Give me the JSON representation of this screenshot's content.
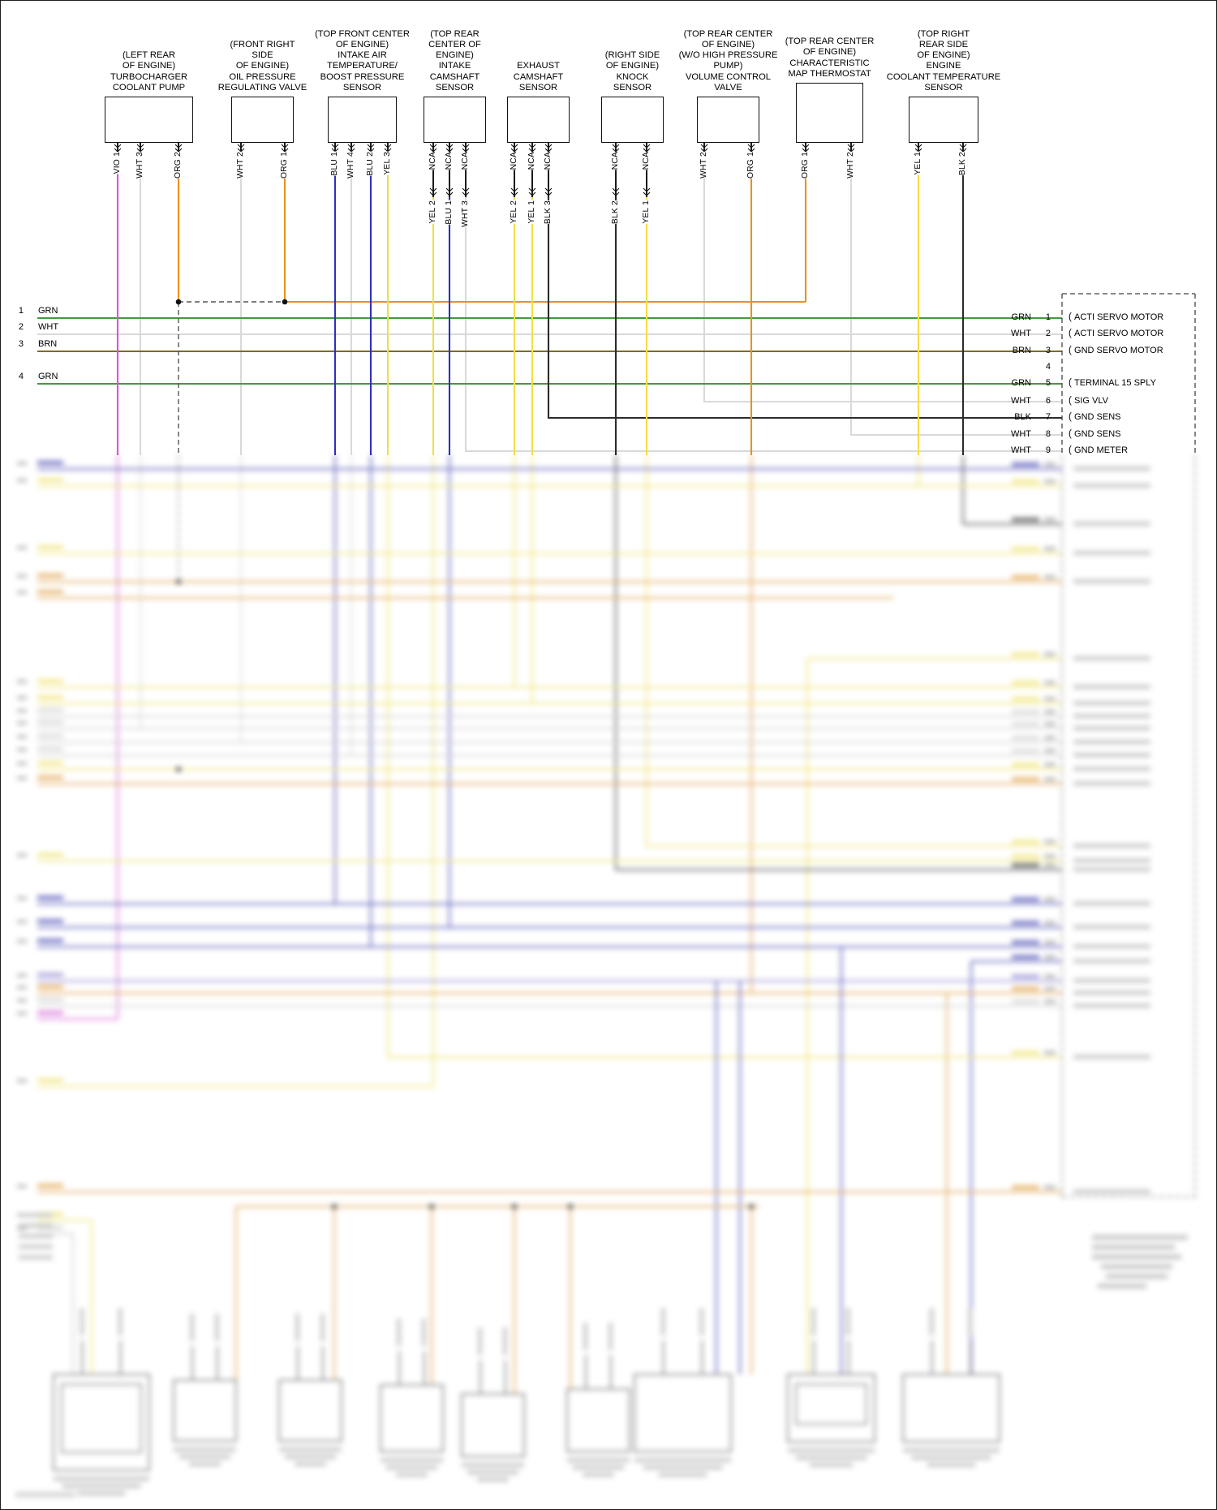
{
  "colors": {
    "GRN": "#3f9b3f",
    "WHT": "#d9d9d9",
    "BRN": "#7d6b21",
    "ORG": "#e8921e",
    "VIO": "#e14fe1",
    "BLU": "#2f2fbf",
    "YEL": "#f0df45",
    "BLK": "#2b2b2b",
    "GRY": "#c9c9c9",
    "PUR": "#8276d8",
    "DRK": "#555555"
  },
  "components": [
    {
      "label": "(LEFT REAR\nOF ENGINE)\nTURBOCHARGER\nCOOLANT PUMP",
      "pins": [
        "VIO 1",
        "WHT 3",
        "ORG 2"
      ],
      "nca": []
    },
    {
      "label": "(FRONT RIGHT\nSIDE\nOF ENGINE)\nOIL PRESSURE\nREGULATING VALVE",
      "pins": [
        "WHT 2",
        "ORG 1"
      ],
      "nca": []
    },
    {
      "label": "(TOP FRONT CENTER\nOF ENGINE)\nINTAKE AIR\nTEMPERATURE/\nBOOST PRESSURE\nSENSOR",
      "pins": [
        "BLU 1",
        "WHT 4",
        "BLU 2",
        "YEL 3"
      ],
      "nca": []
    },
    {
      "label": "(TOP REAR\nCENTER OF\nENGINE)\nINTAKE\nCAMSHAFT\nSENSOR",
      "pins": [
        "YEL 2",
        "BLU 1",
        "WHT 3"
      ],
      "nca": [
        "NCA",
        "NCA",
        "NCA"
      ]
    },
    {
      "label": "EXHAUST\nCAMSHAFT\nSENSOR",
      "pins": [
        "YEL 2",
        "YEL 1",
        "BLK 3"
      ],
      "nca": [
        "NCA",
        "NCA",
        "NCA"
      ]
    },
    {
      "label": "(RIGHT SIDE\nOF ENGINE)\nKNOCK\nSENSOR",
      "pins": [
        "BLK 2",
        "YEL 1"
      ],
      "nca": [
        "NCA",
        "NCA"
      ]
    },
    {
      "label": "(TOP REAR CENTER\nOF ENGINE)\n(W/O HIGH PRESSURE\nPUMP)\nVOLUME CONTROL\nVALVE",
      "pins": [
        "WHT 2",
        "ORG 1"
      ],
      "nca": []
    },
    {
      "label": "(TOP REAR CENTER\nOF ENGINE)\nCHARACTERISTIC\nMAP THERMOSTAT",
      "pins": [
        "ORG 1",
        "WHT 2"
      ],
      "nca": []
    },
    {
      "label": "(TOP RIGHT\nREAR SIDE\nOF ENGINE)\nENGINE\nCOOLANT TEMPERATURE\nSENSOR",
      "pins": [
        "YEL 1",
        "BLK 2"
      ],
      "nca": []
    }
  ],
  "left_rows": [
    {
      "num": "1",
      "color": "GRN"
    },
    {
      "num": "2",
      "color": "WHT"
    },
    {
      "num": "3",
      "color": "BRN"
    },
    {
      "num": "4",
      "color": "GRN"
    }
  ],
  "connector": {
    "rows": [
      {
        "color": "GRN",
        "pin": "1",
        "desc": "ACTI SERVO MOTOR"
      },
      {
        "color": "WHT",
        "pin": "2",
        "desc": "ACTI SERVO MOTOR"
      },
      {
        "color": "BRN",
        "pin": "3",
        "desc": "GND SERVO MOTOR"
      },
      {
        "color": "",
        "pin": "4",
        "desc": ""
      },
      {
        "color": "GRN",
        "pin": "5",
        "desc": "TERMINAL 15 SPLY"
      },
      {
        "color": "WHT",
        "pin": "6",
        "desc": "SIG VLV"
      },
      {
        "color": "BLK",
        "pin": "7",
        "desc": "GND SENS"
      },
      {
        "color": "WHT",
        "pin": "8",
        "desc": "GND SENS"
      },
      {
        "color": "WHT",
        "pin": "9",
        "desc": "GND METER"
      }
    ]
  }
}
